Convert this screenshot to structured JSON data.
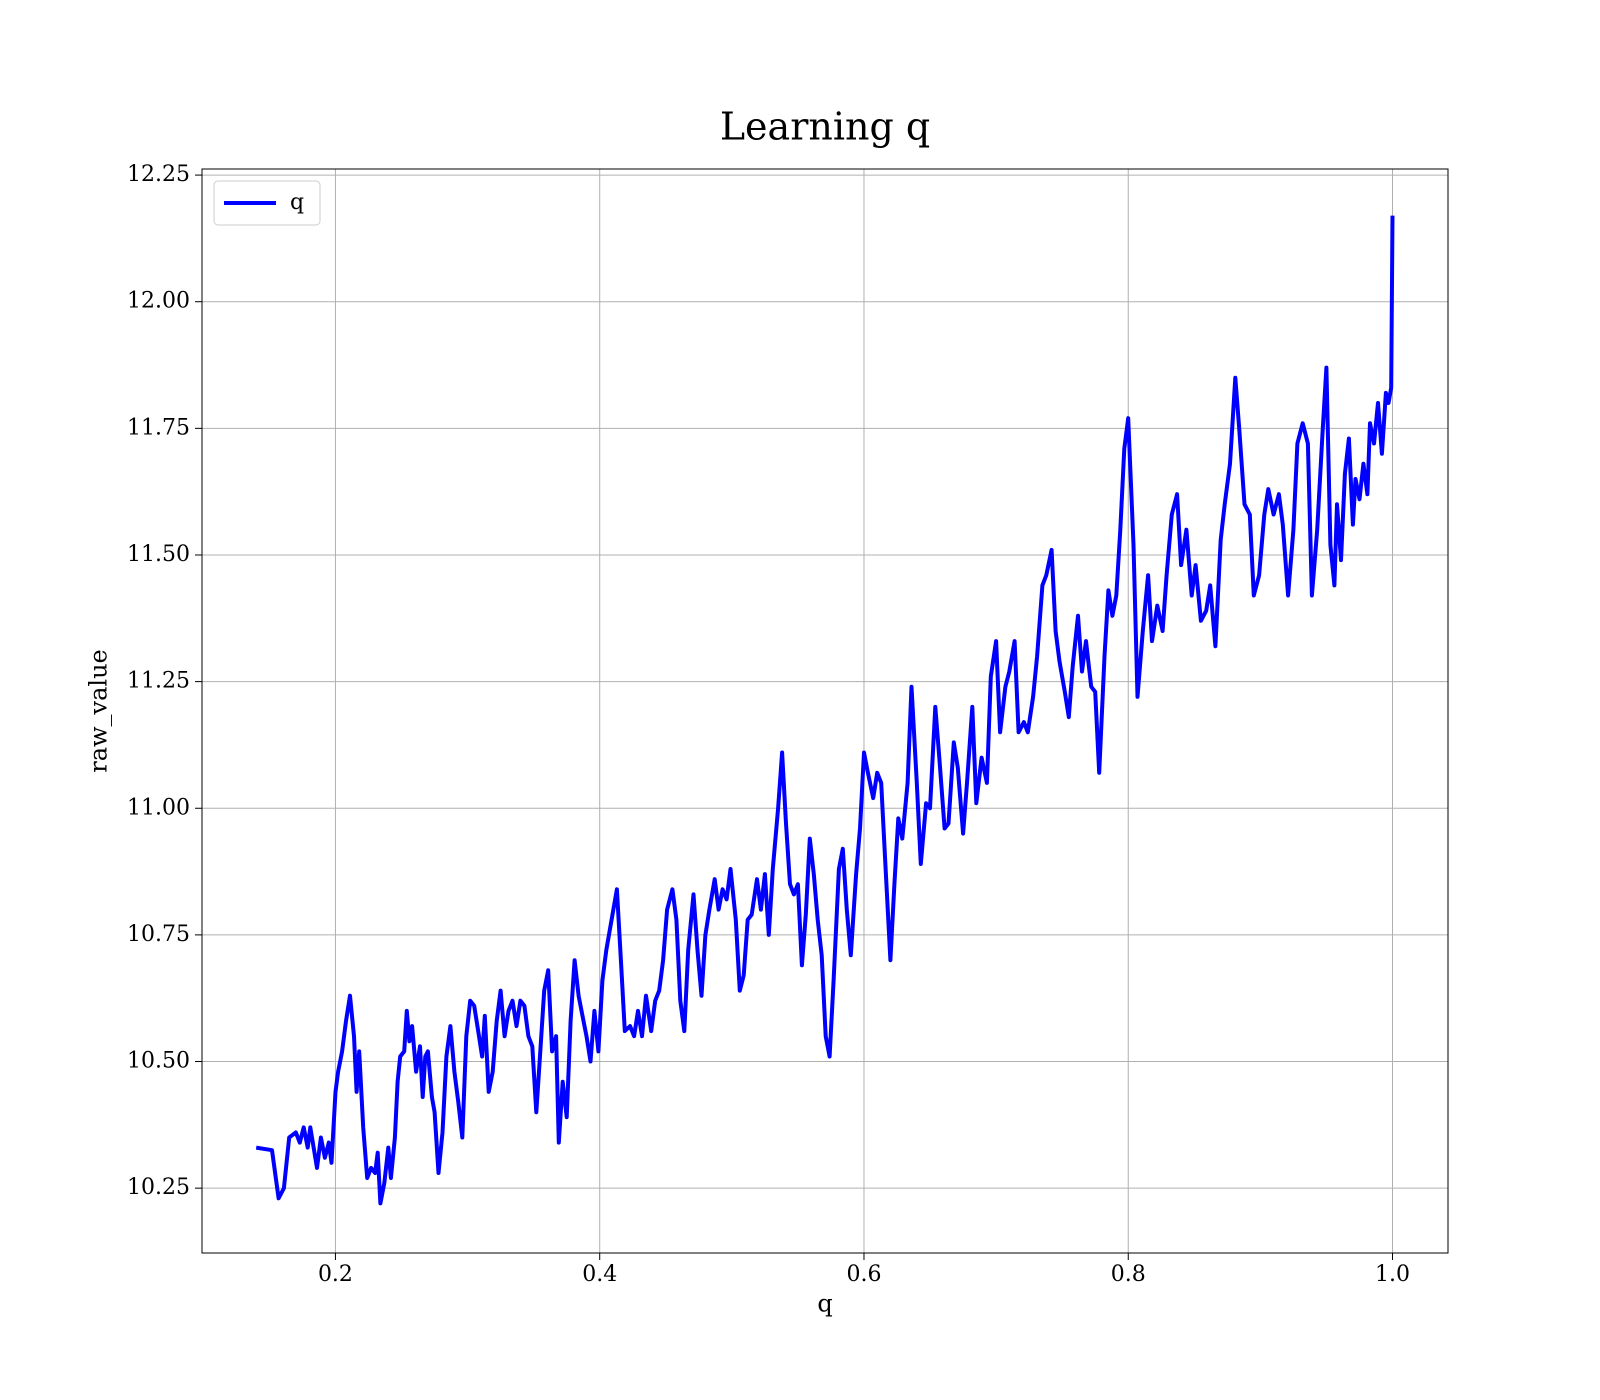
{
  "chart_data": {
    "type": "line",
    "title": "Learning q",
    "xlabel": "q",
    "ylabel": "raw_value",
    "xlim": [
      0.099,
      1.042
    ],
    "ylim": [
      10.122,
      12.262
    ],
    "xticks": [
      0.2,
      0.4,
      0.6,
      0.8,
      {
        "value": 1,
        "label": "1.0"
      }
    ],
    "yticks": [
      10.25,
      {
        "value": 10.5,
        "label": "10.50"
      },
      10.75,
      {
        "value": 11,
        "label": "11.00"
      },
      11.25,
      {
        "value": 11.5,
        "label": "11.50"
      },
      11.75,
      {
        "value": 12,
        "label": "12.00"
      },
      12.25
    ],
    "grid": true,
    "legend": "upper left",
    "x": [
      0.14,
      0.152,
      0.157,
      0.161,
      0.165,
      0.17,
      0.173,
      0.176,
      0.179,
      0.181,
      0.186,
      0.189,
      0.192,
      0.195,
      0.197,
      0.2,
      0.202,
      0.205,
      0.208,
      0.211,
      0.214,
      0.216,
      0.218,
      0.221,
      0.224,
      0.227,
      0.23,
      0.232,
      0.234,
      0.237,
      0.24,
      0.242,
      0.245,
      0.247,
      0.249,
      0.252,
      0.254,
      0.256,
      0.258,
      0.261,
      0.264,
      0.266,
      0.268,
      0.27,
      0.273,
      0.275,
      0.278,
      0.281,
      0.284,
      0.287,
      0.29,
      0.293,
      0.296,
      0.299,
      0.302,
      0.305,
      0.308,
      0.311,
      0.313,
      0.316,
      0.319,
      0.322,
      0.325,
      0.328,
      0.331,
      0.334,
      0.337,
      0.34,
      0.343,
      0.346,
      0.349,
      0.352,
      0.355,
      0.358,
      0.361,
      0.364,
      0.367,
      0.369,
      0.372,
      0.375,
      0.378,
      0.381,
      0.384,
      0.387,
      0.39,
      0.393,
      0.396,
      0.399,
      0.402,
      0.405,
      0.413,
      0.416,
      0.419,
      0.423,
      0.426,
      0.429,
      0.432,
      0.435,
      0.439,
      0.442,
      0.445,
      0.448,
      0.451,
      0.455,
      0.458,
      0.461,
      0.464,
      0.467,
      0.471,
      0.474,
      0.477,
      0.48,
      0.483,
      0.487,
      0.49,
      0.493,
      0.496,
      0.499,
      0.503,
      0.506,
      0.509,
      0.512,
      0.515,
      0.519,
      0.522,
      0.525,
      0.528,
      0.531,
      0.535,
      0.538,
      0.541,
      0.544,
      0.547,
      0.55,
      0.553,
      0.556,
      0.559,
      0.562,
      0.565,
      0.568,
      0.571,
      0.574,
      0.577,
      0.581,
      0.584,
      0.587,
      0.59,
      0.594,
      0.597,
      0.6,
      0.603,
      0.607,
      0.61,
      0.613,
      0.616,
      0.62,
      0.623,
      0.626,
      0.629,
      0.633,
      0.636,
      0.64,
      0.643,
      0.647,
      0.65,
      0.654,
      0.657,
      0.661,
      0.664,
      0.668,
      0.671,
      0.675,
      0.678,
      0.682,
      0.685,
      0.689,
      0.693,
      0.696,
      0.7,
      0.703,
      0.707,
      0.71,
      0.714,
      0.717,
      0.721,
      0.724,
      0.728,
      0.731,
      0.735,
      0.738,
      0.742,
      0.745,
      0.748,
      0.752,
      0.755,
      0.758,
      0.762,
      0.765,
      0.768,
      0.772,
      0.775,
      0.778,
      0.782,
      0.785,
      0.788,
      0.791,
      0.794,
      0.797,
      0.8,
      0.804,
      0.807,
      0.811,
      0.815,
      0.818,
      0.822,
      0.826,
      0.829,
      0.833,
      0.837,
      0.84,
      0.844,
      0.848,
      0.851,
      0.855,
      0.859,
      0.862,
      0.866,
      0.87,
      0.873,
      0.877,
      0.881,
      0.884,
      0.888,
      0.892,
      0.895,
      0.899,
      0.903,
      0.906,
      0.91,
      0.914,
      0.917,
      0.921,
      0.925,
      0.928,
      0.932,
      0.936,
      0.939,
      0.943,
      0.947,
      0.95,
      0.953,
      0.956,
      0.958,
      0.961,
      0.964,
      0.967,
      0.97,
      0.972,
      0.975,
      0.978,
      0.981,
      0.983,
      0.986,
      0.989,
      0.992,
      0.995,
      0.997,
      0.999,
      1.0
    ],
    "series": [
      {
        "name": "q",
        "color": "#0000ff",
        "values": [
          10.33,
          10.325,
          10.23,
          10.25,
          10.35,
          10.36,
          10.34,
          10.37,
          10.33,
          10.37,
          10.29,
          10.35,
          10.31,
          10.34,
          10.3,
          10.44,
          10.48,
          10.52,
          10.58,
          10.63,
          10.55,
          10.44,
          10.52,
          10.37,
          10.27,
          10.29,
          10.28,
          10.32,
          10.22,
          10.26,
          10.33,
          10.27,
          10.35,
          10.46,
          10.51,
          10.52,
          10.6,
          10.54,
          10.57,
          10.48,
          10.53,
          10.43,
          10.51,
          10.52,
          10.43,
          10.4,
          10.28,
          10.36,
          10.51,
          10.57,
          10.48,
          10.42,
          10.35,
          10.55,
          10.62,
          10.61,
          10.56,
          10.51,
          10.59,
          10.44,
          10.48,
          10.58,
          10.64,
          10.55,
          10.6,
          10.62,
          10.57,
          10.62,
          10.61,
          10.55,
          10.53,
          10.4,
          10.52,
          10.64,
          10.68,
          10.52,
          10.55,
          10.34,
          10.46,
          10.39,
          10.58,
          10.7,
          10.63,
          10.59,
          10.55,
          10.5,
          10.6,
          10.52,
          10.66,
          10.72,
          10.84,
          10.7,
          10.56,
          10.57,
          10.55,
          10.6,
          10.55,
          10.63,
          10.56,
          10.62,
          10.64,
          10.7,
          10.8,
          10.84,
          10.78,
          10.62,
          10.56,
          10.72,
          10.83,
          10.72,
          10.63,
          10.75,
          10.8,
          10.86,
          10.8,
          10.84,
          10.82,
          10.88,
          10.78,
          10.64,
          10.67,
          10.78,
          10.79,
          10.86,
          10.8,
          10.87,
          10.75,
          10.88,
          11.0,
          11.11,
          10.97,
          10.85,
          10.83,
          10.85,
          10.69,
          10.79,
          10.94,
          10.87,
          10.78,
          10.71,
          10.55,
          10.51,
          10.66,
          10.88,
          10.92,
          10.8,
          10.71,
          10.87,
          10.96,
          11.11,
          11.07,
          11.02,
          11.07,
          11.05,
          10.9,
          10.7,
          10.85,
          10.98,
          10.94,
          11.05,
          11.24,
          11.05,
          10.89,
          11.01,
          11.0,
          11.2,
          11.1,
          10.96,
          10.97,
          11.13,
          11.08,
          10.95,
          11.05,
          11.2,
          11.01,
          11.1,
          11.05,
          11.26,
          11.33,
          11.15,
          11.24,
          11.27,
          11.33,
          11.15,
          11.17,
          11.15,
          11.22,
          11.3,
          11.44,
          11.46,
          11.51,
          11.35,
          11.29,
          11.23,
          11.18,
          11.28,
          11.38,
          11.27,
          11.33,
          11.24,
          11.23,
          11.07,
          11.3,
          11.43,
          11.38,
          11.42,
          11.55,
          11.71,
          11.77,
          11.52,
          11.22,
          11.35,
          11.46,
          11.33,
          11.4,
          11.35,
          11.46,
          11.58,
          11.62,
          11.48,
          11.55,
          11.42,
          11.48,
          11.37,
          11.39,
          11.44,
          11.32,
          11.53,
          11.6,
          11.68,
          11.85,
          11.75,
          11.6,
          11.58,
          11.42,
          11.46,
          11.58,
          11.63,
          11.58,
          11.62,
          11.56,
          11.42,
          11.55,
          11.72,
          11.76,
          11.72,
          11.42,
          11.55,
          11.74,
          11.87,
          11.52,
          11.44,
          11.6,
          11.49,
          11.66,
          11.73,
          11.56,
          11.65,
          11.61,
          11.68,
          11.62,
          11.76,
          11.72,
          11.8,
          11.7,
          11.82,
          11.8,
          11.83,
          12.17
        ]
      }
    ]
  }
}
